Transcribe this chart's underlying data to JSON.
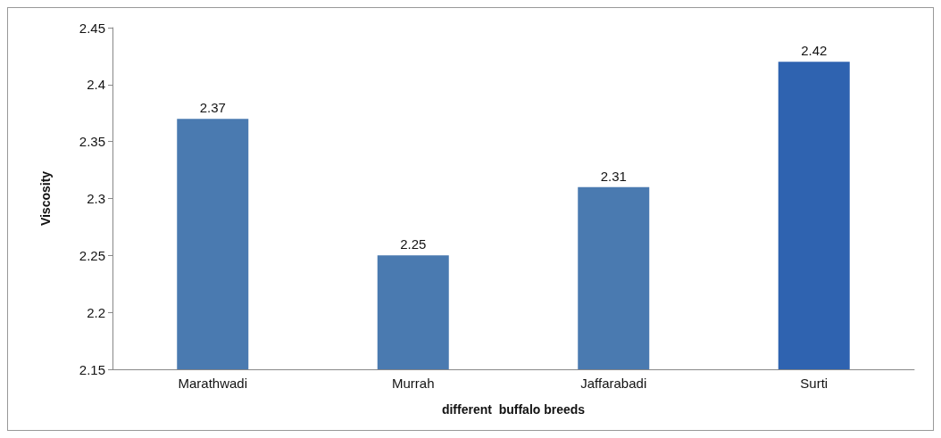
{
  "chart_data": {
    "type": "bar",
    "xlabel": "different  buffalo breeds",
    "ylabel": "Viscosity",
    "categories": [
      "Marathwadi",
      "Murrah",
      "Jaffarabadi",
      "Surti"
    ],
    "values": [
      2.37,
      2.25,
      2.31,
      2.42
    ],
    "colors": [
      "#4a7ab0",
      "#4a7ab0",
      "#4a7ab0",
      "#2f63b0"
    ],
    "ylim": [
      2.15,
      2.45
    ],
    "yticks": [
      2.15,
      2.2,
      2.25,
      2.3,
      2.35,
      2.4,
      2.45
    ],
    "data_labels": true
  }
}
